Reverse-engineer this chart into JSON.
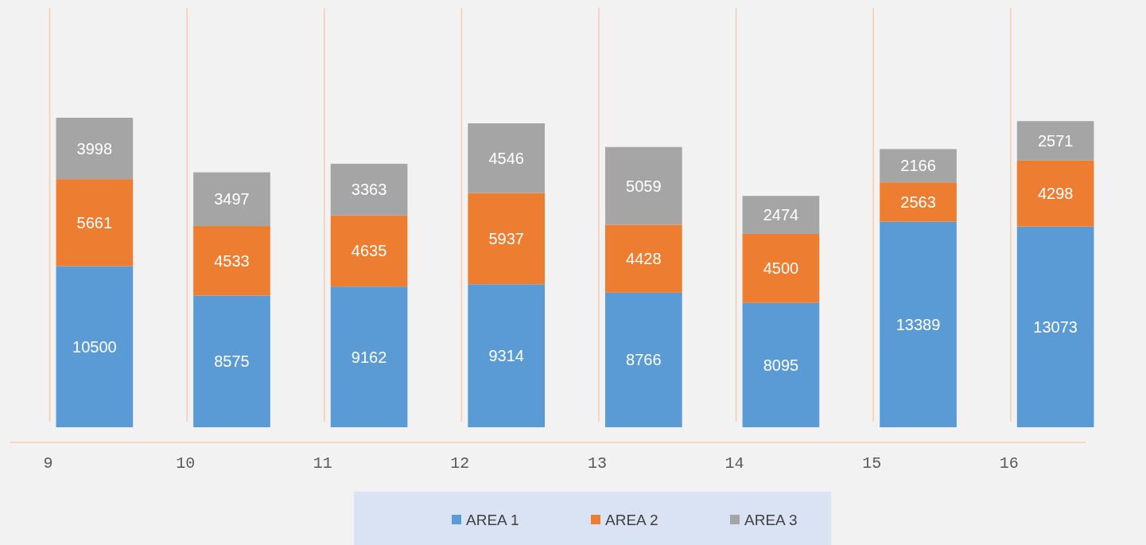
{
  "chart_data": {
    "type": "bar",
    "stacked": true,
    "categories": [
      "9",
      "10",
      "11",
      "12",
      "13",
      "14",
      "15",
      "16"
    ],
    "series": [
      {
        "name": "AREA 1",
        "color": "#5b9bd5",
        "values": [
          10500,
          8575,
          9162,
          9314,
          8766,
          8095,
          13389,
          13073
        ]
      },
      {
        "name": "AREA 2",
        "color": "#ed7d31",
        "values": [
          5661,
          4533,
          4635,
          5937,
          4428,
          4500,
          2563,
          4298
        ]
      },
      {
        "name": "AREA 3",
        "color": "#a5a5a5",
        "values": [
          3998,
          3497,
          3363,
          4546,
          5059,
          2474,
          2166,
          2571
        ]
      }
    ],
    "data_labels": true,
    "grid": "x",
    "legend": "bottom"
  }
}
